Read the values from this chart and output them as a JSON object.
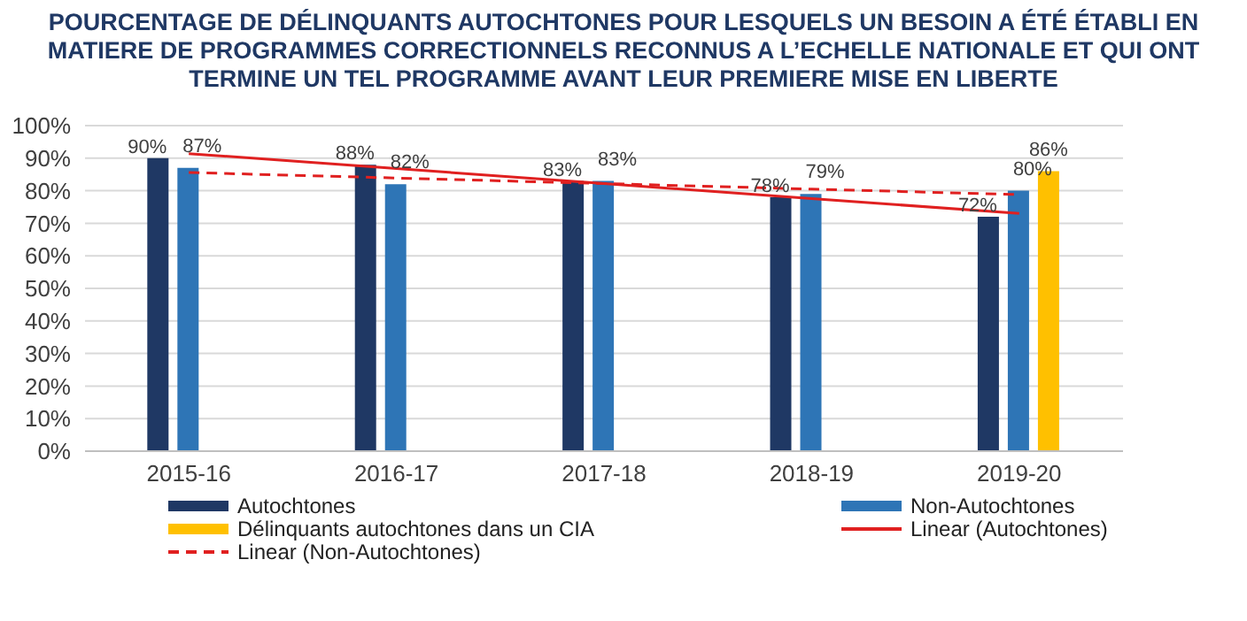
{
  "chart_data": {
    "type": "bar",
    "title": "POURCENTAGE DE DÉLINQUANTS AUTOCHTONES POUR LESQUELS UN BESOIN A ÉTÉ ÉTABLI EN MATIERE DE PROGRAMMES CORRECTIONNELS RECONNUS A L’ECHELLE NATIONALE ET QUI ONT TERMINE UN TEL PROGRAMME AVANT LEUR PREMIERE MISE EN LIBERTE",
    "categories": [
      "2015-16",
      "2016-17",
      "2017-18",
      "2018-19",
      "2019-20"
    ],
    "series": [
      {
        "name": "Autochtones",
        "color": "#1f3864",
        "values": [
          90,
          88,
          83,
          78,
          72
        ],
        "value_labels": [
          "90%",
          "88%",
          "83%",
          "78%",
          "72%"
        ]
      },
      {
        "name": "Non-Autochtones",
        "color": "#2e75b6",
        "values": [
          87,
          82,
          83,
          79,
          80
        ],
        "value_labels": [
          "87%",
          "82%",
          "83%",
          "79%",
          "80%"
        ]
      },
      {
        "name": "Délinquants autochtones dans un CIA",
        "color": "#ffc000",
        "values": [
          null,
          null,
          null,
          null,
          86
        ],
        "value_labels": [
          null,
          null,
          null,
          null,
          "86%"
        ]
      },
      {
        "name": "Linear (Autochtones)",
        "type": "line",
        "color": "#e02020",
        "line_style": "solid",
        "values": [
          91.4,
          86.8,
          82.2,
          77.6,
          73.0
        ]
      },
      {
        "name": "Linear (Non-Autochtones)",
        "type": "line",
        "color": "#e02020",
        "line_style": "dashed",
        "values": [
          85.6,
          83.9,
          82.2,
          80.5,
          78.8
        ]
      }
    ],
    "ylim": [
      0,
      100
    ],
    "yticks": [
      {
        "value": 0,
        "label": "0%"
      },
      {
        "value": 10,
        "label": "10%"
      },
      {
        "value": 20,
        "label": "20%"
      },
      {
        "value": 30,
        "label": "30%"
      },
      {
        "value": 40,
        "label": "40%"
      },
      {
        "value": 50,
        "label": "50%"
      },
      {
        "value": 60,
        "label": "60%"
      },
      {
        "value": 70,
        "label": "70%"
      },
      {
        "value": 80,
        "label": "80%"
      },
      {
        "value": 90,
        "label": "90%"
      },
      {
        "value": 100,
        "label": "100%"
      }
    ],
    "grid": "y",
    "legend": "bottom"
  }
}
